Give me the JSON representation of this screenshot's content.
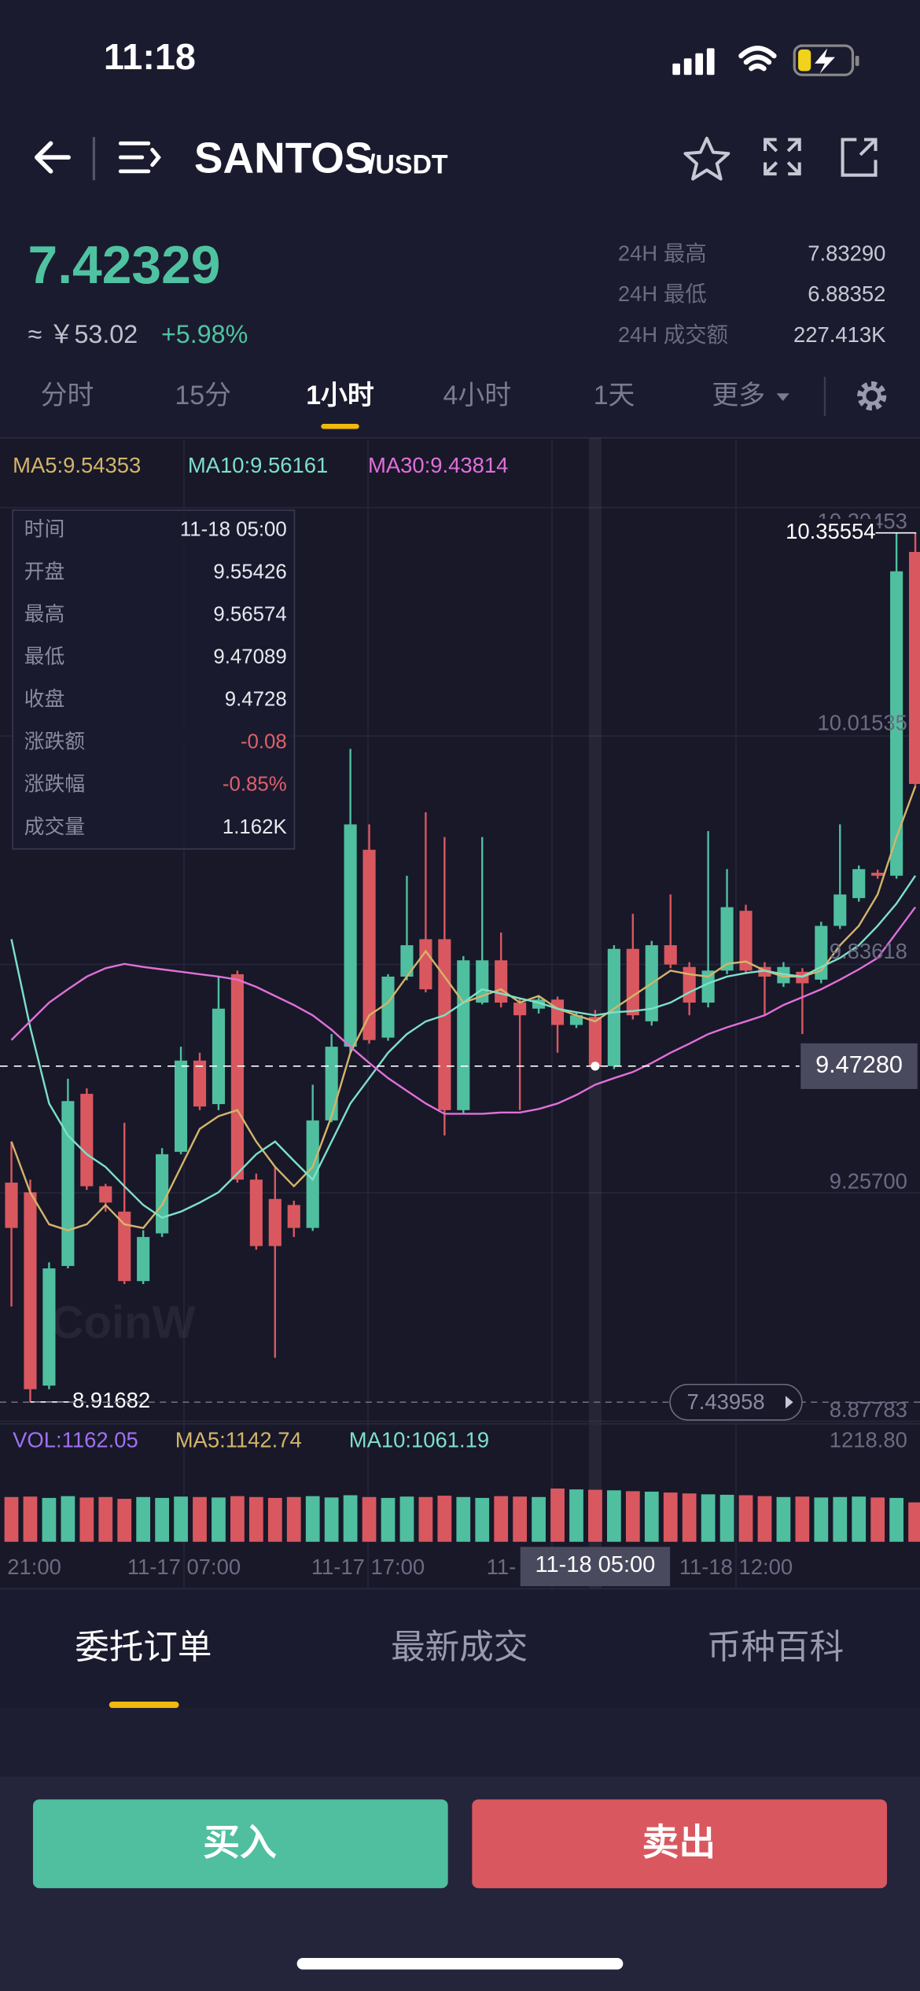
{
  "status_bar": {
    "time": "11:18"
  },
  "header": {
    "base": "SANTOS",
    "quote": "/USDT"
  },
  "price": {
    "last": "7.42329",
    "cny": "≈ ￥53.02",
    "change": "+5.98%"
  },
  "stats": [
    {
      "label": "24H 最高",
      "value": "7.83290"
    },
    {
      "label": "24H 最低",
      "value": "6.88352"
    },
    {
      "label": "24H 成交额",
      "value": "227.413K"
    }
  ],
  "intervals": [
    "分时",
    "15分",
    "1小时",
    "4小时",
    "1天",
    "更多"
  ],
  "active_interval": 2,
  "chart_data": {
    "type": "candlestick",
    "up_color": "#4fbf9f",
    "down_color": "#d9585f",
    "ylim": [
      8.885,
      10.513
    ],
    "open": [
      9.28,
      9.264,
      8.944,
      9.142,
      9.427,
      9.274,
      9.232,
      9.117,
      9.196,
      9.331,
      9.482,
      9.41,
      9.625,
      9.285,
      9.253,
      9.243,
      9.205,
      9.383,
      9.505,
      9.831,
      9.52,
      9.621,
      9.683,
      9.683,
      9.4,
      9.578,
      9.648,
      9.578,
      9.568,
      9.583,
      9.541,
      9.55426,
      9.4728,
      9.667,
      9.547,
      9.673,
      9.637,
      9.578,
      9.631,
      9.73,
      9.637,
      9.61,
      9.629,
      9.616,
      9.705,
      9.751,
      9.793,
      9.788,
      10.324
    ],
    "high": [
      9.348,
      9.285,
      9.148,
      9.452,
      9.436,
      9.278,
      9.379,
      9.201,
      9.337,
      9.505,
      9.495,
      9.621,
      9.631,
      9.295,
      9.306,
      9.25,
      9.442,
      9.526,
      9.998,
      9.873,
      9.625,
      9.788,
      9.893,
      9.852,
      9.655,
      9.852,
      9.694,
      9.585,
      9.59,
      9.588,
      9.562,
      9.56574,
      9.673,
      9.725,
      9.68,
      9.757,
      9.645,
      9.862,
      9.799,
      9.74,
      9.645,
      9.645,
      9.635,
      9.712,
      9.873,
      9.805,
      9.798,
      10.355,
      10.35554
    ],
    "low": [
      9.075,
      8.91682,
      8.938,
      9.138,
      9.268,
      9.232,
      9.112,
      9.112,
      9.19,
      9.327,
      9.4,
      9.4,
      9.28,
      9.169,
      8.99,
      9.19,
      9.2,
      9.38,
      9.494,
      9.51,
      9.515,
      9.615,
      9.595,
      9.358,
      9.395,
      9.575,
      9.57,
      9.4,
      9.56,
      9.495,
      9.536,
      9.47089,
      9.468,
      9.55,
      9.54,
      9.635,
      9.557,
      9.57,
      9.625,
      9.625,
      9.557,
      9.604,
      9.526,
      9.61,
      9.7,
      9.745,
      9.783,
      9.783,
      9.935
    ],
    "close": [
      9.205,
      8.938,
      9.138,
      9.415,
      9.274,
      9.247,
      9.117,
      9.19,
      9.327,
      9.482,
      9.406,
      9.568,
      9.285,
      9.175,
      9.175,
      9.205,
      9.383,
      9.505,
      9.873,
      9.516,
      9.621,
      9.673,
      9.6,
      9.4,
      9.648,
      9.648,
      9.578,
      9.557,
      9.583,
      9.541,
      9.557,
      9.4728,
      9.667,
      9.557,
      9.673,
      9.641,
      9.578,
      9.631,
      9.736,
      9.631,
      9.621,
      9.637,
      9.61,
      9.705,
      9.757,
      9.799,
      9.788,
      10.292,
      9.94
    ],
    "series": [
      {
        "name": "MA5:9.54353",
        "color": "#d4b46a",
        "values": [
          9.348,
          9.264,
          9.211,
          9.201,
          9.211,
          9.243,
          9.211,
          9.205,
          9.243,
          9.306,
          9.369,
          9.39,
          9.4,
          9.348,
          9.306,
          9.274,
          9.306,
          9.39,
          9.495,
          9.557,
          9.578,
          9.621,
          9.663,
          9.621,
          9.578,
          9.589,
          9.6,
          9.578,
          9.589,
          9.568,
          9.557,
          9.547,
          9.568,
          9.589,
          9.61,
          9.631,
          9.625,
          9.621,
          9.642,
          9.646,
          9.631,
          9.621,
          9.621,
          9.631,
          9.673,
          9.705,
          9.757,
          9.852,
          9.936
        ]
      },
      {
        "name": "MA10:9.56161",
        "color": "#7de0c8",
        "values": [
          9.683,
          9.537,
          9.411,
          9.358,
          9.327,
          9.306,
          9.274,
          9.243,
          9.222,
          9.232,
          9.247,
          9.264,
          9.295,
          9.327,
          9.348,
          9.316,
          9.285,
          9.348,
          9.411,
          9.453,
          9.495,
          9.526,
          9.547,
          9.557,
          9.578,
          9.6,
          9.593,
          9.585,
          9.578,
          9.568,
          9.562,
          9.557,
          9.562,
          9.564,
          9.568,
          9.578,
          9.595,
          9.61,
          9.621,
          9.627,
          9.631,
          9.625,
          9.621,
          9.637,
          9.652,
          9.673,
          9.705,
          9.742,
          9.788
        ]
      },
      {
        "name": "MA30:9.43814",
        "color": "#e070d8",
        "values": [
          9.516,
          9.547,
          9.578,
          9.6,
          9.621,
          9.635,
          9.642,
          9.637,
          9.633,
          9.629,
          9.625,
          9.621,
          9.616,
          9.604,
          9.589,
          9.574,
          9.557,
          9.533,
          9.505,
          9.478,
          9.453,
          9.432,
          9.411,
          9.394,
          9.394,
          9.394,
          9.396,
          9.396,
          9.402,
          9.411,
          9.425,
          9.442,
          9.453,
          9.463,
          9.478,
          9.495,
          9.51,
          9.526,
          9.537,
          9.547,
          9.557,
          9.574,
          9.587,
          9.6,
          9.616,
          9.633,
          9.652,
          9.694,
          9.736
        ]
      }
    ],
    "price_labels": [
      "10.20453",
      "10.01535",
      "9.83618",
      "9.25700",
      "8.87783"
    ],
    "max_label": {
      "value": 10.35554,
      "label": "10.35554"
    },
    "min_label": {
      "value": 8.91682,
      "label": "8.91682"
    },
    "current_price_tag": "7.43958",
    "crosshair": {
      "index": 31,
      "price": {
        "value": 9.4728,
        "label": "9.47280"
      },
      "time": "11-18 05:00"
    },
    "tooltip": [
      {
        "label": "时间",
        "value": "11-18 05:00"
      },
      {
        "label": "开盘",
        "value": "9.55426"
      },
      {
        "label": "最高",
        "value": "9.56574"
      },
      {
        "label": "最低",
        "value": "9.47089"
      },
      {
        "label": "收盘",
        "value": "9.4728"
      },
      {
        "label": "涨跌额",
        "value": "-0.08"
      },
      {
        "label": "涨跌幅",
        "value": "-0.85%"
      },
      {
        "label": "成交量",
        "value": "1.162K"
      }
    ],
    "watermark": "CoinW",
    "time_labels": [
      "21:00",
      "11-17 07:00",
      "11-17 17:00",
      "11-",
      "11-18 12:00"
    ],
    "volume": {
      "legend": [
        {
          "name": "VOL:1162.05",
          "color": "#a070f0"
        },
        {
          "name": "MA5:1142.74",
          "color": "#d4b46a"
        },
        {
          "name": "MA10:1061.19",
          "color": "#7de0c8"
        }
      ],
      "ylim": [
        0,
        1218.8
      ],
      "yticks": [
        {
          "value": 1218.8,
          "label": "1218.80"
        }
      ],
      "values": [
        1000,
        1010,
        980,
        1020,
        990,
        1000,
        960,
        1000,
        980,
        1010,
        1000,
        990,
        1020,
        1000,
        980,
        1000,
        1020,
        990,
        1040,
        1000,
        980,
        1010,
        1000,
        1030,
        1000,
        980,
        1020,
        1010,
        1000,
        1190,
        1170,
        1162.05,
        1150,
        1130,
        1120,
        1100,
        1080,
        1060,
        1050,
        1040,
        1020,
        1000,
        1010,
        990,
        1000,
        1010,
        990,
        980,
        880
      ]
    }
  },
  "tabs": [
    "委托订单",
    "最新成交",
    "币种百科"
  ],
  "buttons": {
    "buy": "买入",
    "sell": "卖出"
  }
}
